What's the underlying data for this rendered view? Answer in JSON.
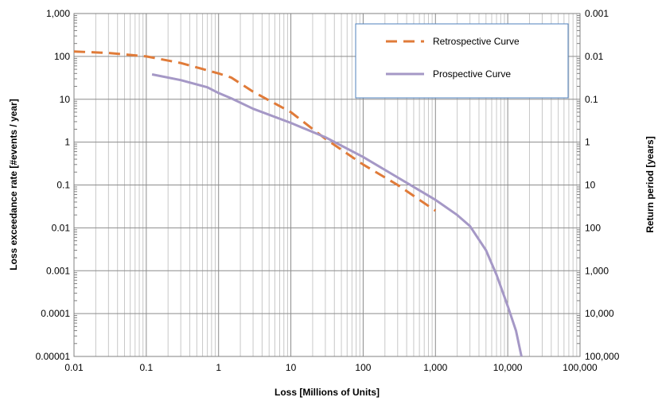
{
  "chart_data": {
    "type": "line",
    "title": "",
    "xlabel": "Loss [Millions of Units]",
    "ylabel": "Loss exceedance rate [#events / year]",
    "y2label": "Return period [years]",
    "xscale": "log",
    "yscale": "log",
    "xlim": [
      0.01,
      100000
    ],
    "ylim": [
      1e-05,
      1000
    ],
    "grid": true,
    "legend_position": "top-right",
    "x_ticks": [
      "0.01",
      "0.1",
      "1",
      "10",
      "100",
      "1,000",
      "10,000",
      "100,000"
    ],
    "y_ticks": [
      "1,000",
      "100",
      "10",
      "1",
      "0.1",
      "0.01",
      "0.001",
      "0.0001",
      "0.00001"
    ],
    "y2_ticks": [
      "0.001",
      "0.01",
      "0.1",
      "1",
      "10",
      "100",
      "1,000",
      "10,000",
      "100,000"
    ],
    "series": [
      {
        "name": "Retrospective Curve",
        "color": "#e07b39",
        "style": "dashed",
        "x": [
          0.01,
          0.03,
          0.1,
          0.3,
          1,
          1.5,
          3,
          10,
          30,
          100,
          300,
          1000
        ],
        "y": [
          130,
          120,
          100,
          70,
          40,
          32,
          15,
          5,
          1.2,
          0.3,
          0.1,
          0.025
        ]
      },
      {
        "name": "Prospective Curve",
        "color": "#a598c6",
        "style": "solid",
        "x": [
          0.12,
          0.3,
          0.7,
          1,
          1.5,
          3,
          10,
          30,
          100,
          300,
          1000,
          2000,
          3000,
          5000,
          7000,
          10000,
          13000,
          15500
        ],
        "y": [
          38,
          28,
          19,
          14,
          10.5,
          6,
          2.8,
          1.3,
          0.45,
          0.15,
          0.045,
          0.02,
          0.011,
          0.003,
          0.0008,
          0.00015,
          4e-05,
          1e-05
        ]
      }
    ]
  }
}
